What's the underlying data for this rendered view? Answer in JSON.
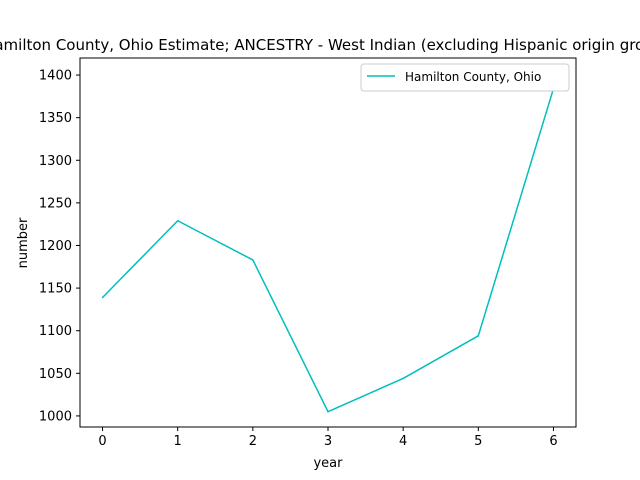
{
  "chart_data": {
    "type": "line",
    "title": "Hamilton County, Ohio Estimate; ANCESTRY - West Indian (excluding Hispanic origin groups)",
    "xlabel": "year",
    "ylabel": "number",
    "x": [
      0,
      1,
      2,
      3,
      4,
      5,
      6
    ],
    "xticks": [
      "0",
      "1",
      "2",
      "3",
      "4",
      "5",
      "6"
    ],
    "yticks": [
      "1000",
      "1050",
      "1100",
      "1150",
      "1200",
      "1250",
      "1300",
      "1350",
      "1400"
    ],
    "ylim": [
      987,
      1420
    ],
    "xlim": [
      -0.3,
      6.3
    ],
    "grid": false,
    "legend_position": "top-right",
    "series": [
      {
        "name": "Hamilton County, Ohio",
        "color": "#00bfbf",
        "values": [
          1139,
          1229,
          1183,
          1005,
          1044,
          1094,
          1384
        ]
      }
    ]
  }
}
